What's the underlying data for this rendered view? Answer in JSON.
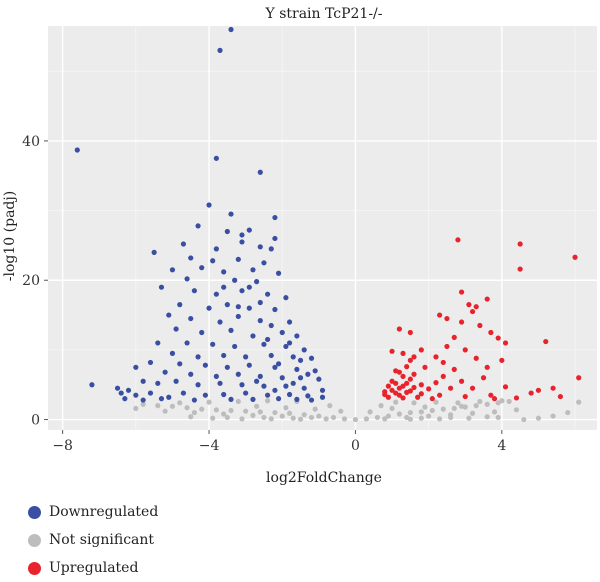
{
  "chart_data": {
    "type": "scatter",
    "title": "Y strain TcP21-/-",
    "xlabel": "log2FoldChange",
    "ylabel": "-log10 (padj)",
    "xlim": [
      -8.4,
      6.6
    ],
    "ylim": [
      -1.5,
      56.5
    ],
    "xticks": [
      -8,
      -4,
      0,
      4
    ],
    "yticks": [
      0,
      20,
      40
    ],
    "grid": true,
    "legend_position": "bottom-left",
    "colors": {
      "down": "#3a4fa3",
      "ns": "#bdbdbd",
      "up": "#e8232c",
      "panel": "#ececec",
      "grid": "#ffffff"
    },
    "series": [
      {
        "name": "Downregulated",
        "color": "#3a4fa3",
        "points": [
          [
            -3.4,
            56
          ],
          [
            -3.7,
            53
          ],
          [
            -7.6,
            38.7
          ],
          [
            -3.8,
            37.5
          ],
          [
            -2.6,
            35.5
          ],
          [
            -4,
            30.8
          ],
          [
            -3.4,
            29.5
          ],
          [
            -2.9,
            27.2
          ],
          [
            -2.2,
            29
          ],
          [
            -4.3,
            27.8
          ],
          [
            -3.5,
            27
          ],
          [
            -3.1,
            25.5
          ],
          [
            -2.6,
            24.8
          ],
          [
            -4.7,
            25.2
          ],
          [
            -5.5,
            24
          ],
          [
            -3.8,
            24.5
          ],
          [
            -2.3,
            24.5
          ],
          [
            -4.5,
            23.2
          ],
          [
            -3.9,
            22.8
          ],
          [
            -3.2,
            23
          ],
          [
            -2.5,
            22.5
          ],
          [
            -5,
            21.5
          ],
          [
            -4.2,
            21.8
          ],
          [
            -3.6,
            21.2
          ],
          [
            -2.8,
            21.5
          ],
          [
            -2.1,
            21
          ],
          [
            -4.6,
            20.2
          ],
          [
            -3.3,
            20
          ],
          [
            -2.7,
            19.8
          ],
          [
            -5.3,
            19
          ],
          [
            -4.4,
            18.5
          ],
          [
            -3.8,
            18
          ],
          [
            -3.1,
            18.5
          ],
          [
            -2.4,
            18
          ],
          [
            -1.9,
            17.5
          ],
          [
            -4.8,
            16.5
          ],
          [
            -4,
            16
          ],
          [
            -3.5,
            16.5
          ],
          [
            -2.9,
            16
          ],
          [
            -2.2,
            15.8
          ],
          [
            -5.1,
            15
          ],
          [
            -4.5,
            14.5
          ],
          [
            -3.7,
            14
          ],
          [
            -3.2,
            14.8
          ],
          [
            -2.6,
            14.2
          ],
          [
            -1.8,
            14
          ],
          [
            -4.9,
            13
          ],
          [
            -4.2,
            12.5
          ],
          [
            -3.4,
            12.8
          ],
          [
            -2.8,
            12
          ],
          [
            -2,
            12.5
          ],
          [
            -1.6,
            12
          ],
          [
            -5.4,
            11
          ],
          [
            -4.6,
            11
          ],
          [
            -3.9,
            10.8
          ],
          [
            -3.3,
            10.5
          ],
          [
            -2.5,
            10.8
          ],
          [
            -1.9,
            10.5
          ],
          [
            -1.4,
            10
          ],
          [
            -5,
            9.5
          ],
          [
            -4.3,
            9
          ],
          [
            -3.6,
            9.2
          ],
          [
            -3,
            9
          ],
          [
            -2.3,
            9.2
          ],
          [
            -1.7,
            9
          ],
          [
            -1.2,
            8.8
          ],
          [
            -5.6,
            8.2
          ],
          [
            -4.8,
            8
          ],
          [
            -4.1,
            7.8
          ],
          [
            -3.5,
            7.5
          ],
          [
            -2.9,
            7.8
          ],
          [
            -2.2,
            7.5
          ],
          [
            -1.6,
            7.2
          ],
          [
            -1.1,
            7
          ],
          [
            -6,
            7.5
          ],
          [
            -5.2,
            6.8
          ],
          [
            -4.5,
            6.5
          ],
          [
            -3.8,
            6.2
          ],
          [
            -3.2,
            6.5
          ],
          [
            -2.6,
            6.2
          ],
          [
            -2,
            6
          ],
          [
            -1.5,
            6
          ],
          [
            -1,
            5.8
          ],
          [
            -6.5,
            4.5
          ],
          [
            -6.2,
            4.2
          ],
          [
            -5.8,
            5.5
          ],
          [
            -5.4,
            5.2
          ],
          [
            -4.9,
            5.5
          ],
          [
            -4.3,
            5
          ],
          [
            -3.7,
            5.2
          ],
          [
            -3.1,
            5
          ],
          [
            -2.5,
            4.8
          ],
          [
            -1.9,
            4.8
          ],
          [
            -1.4,
            4.5
          ],
          [
            -0.9,
            4.2
          ],
          [
            -7.2,
            5
          ],
          [
            -6.4,
            3.8
          ],
          [
            -6,
            3.5
          ],
          [
            -5.6,
            3.8
          ],
          [
            -5.1,
            3.2
          ],
          [
            -4.7,
            3.8
          ],
          [
            -4.1,
            3.5
          ],
          [
            -3.6,
            3.6
          ],
          [
            -3,
            3.8
          ],
          [
            -2.4,
            3.5
          ],
          [
            -1.8,
            3.6
          ],
          [
            -1.3,
            3.4
          ],
          [
            -0.9,
            3.2
          ],
          [
            -6.3,
            3
          ],
          [
            -5.8,
            2.8
          ],
          [
            -5.3,
            3
          ],
          [
            -4.4,
            2.8
          ],
          [
            -3.4,
            2.9
          ],
          [
            -2.8,
            2.9
          ],
          [
            -2.1,
            3
          ],
          [
            -1.6,
            2.9
          ],
          [
            -1.2,
            2.8
          ],
          [
            -2.2,
            4.2
          ],
          [
            -1.7,
            5.2
          ],
          [
            -2.7,
            5.5
          ],
          [
            -1.3,
            6.5
          ],
          [
            -2.1,
            8
          ],
          [
            -1.5,
            8.5
          ],
          [
            -2.4,
            11.5
          ],
          [
            -1.8,
            11
          ],
          [
            -2.3,
            13.5
          ],
          [
            -2.6,
            16.8
          ],
          [
            -3.2,
            16.2
          ],
          [
            -2.9,
            19
          ],
          [
            -3.6,
            19
          ],
          [
            -3.1,
            26.5
          ],
          [
            -2.2,
            26
          ]
        ]
      },
      {
        "name": "Not significant",
        "color": "#bdbdbd",
        "points": [
          [
            -5.8,
            2.2
          ],
          [
            -5.4,
            2
          ],
          [
            -5,
            1.9
          ],
          [
            -4.6,
            1.7
          ],
          [
            -4.2,
            1.5
          ],
          [
            -3.8,
            1.4
          ],
          [
            -3.4,
            1.3
          ],
          [
            -3,
            1.2
          ],
          [
            -2.6,
            1.1
          ],
          [
            -2.2,
            1
          ],
          [
            -1.8,
            0.9
          ],
          [
            -1.4,
            0.7
          ],
          [
            -1,
            0.5
          ],
          [
            -0.6,
            0.3
          ],
          [
            -0.3,
            0.1
          ],
          [
            0,
            0
          ],
          [
            0.3,
            0.1
          ],
          [
            0.6,
            0.3
          ],
          [
            0.9,
            0.5
          ],
          [
            1.2,
            0.8
          ],
          [
            1.5,
            1
          ],
          [
            1.8,
            1.1
          ],
          [
            2.1,
            1.3
          ],
          [
            2.4,
            1.5
          ],
          [
            2.7,
            1.6
          ],
          [
            3,
            1.8
          ],
          [
            3.3,
            2
          ],
          [
            3.6,
            2.2
          ],
          [
            3.9,
            2.4
          ],
          [
            4.2,
            2.6
          ],
          [
            -6,
            1.6
          ],
          [
            -5.2,
            1.2
          ],
          [
            -4.4,
            1
          ],
          [
            -3.6,
            0.8
          ],
          [
            -2.8,
            0.6
          ],
          [
            -2,
            0.5
          ],
          [
            -1.2,
            0.3
          ],
          [
            -0.8,
            0.1
          ],
          [
            0.8,
            0.1
          ],
          [
            1.4,
            0.3
          ],
          [
            2,
            0.5
          ],
          [
            2.6,
            0.7
          ],
          [
            3.2,
            0.9
          ],
          [
            3.8,
            1.1
          ],
          [
            4.4,
            1.4
          ],
          [
            -4.8,
            2.4
          ],
          [
            -4,
            2.5
          ],
          [
            -3.2,
            2.6
          ],
          [
            -2.4,
            2.7
          ],
          [
            -1.6,
            2.6
          ],
          [
            -0.7,
            2
          ],
          [
            -0.4,
            1.2
          ],
          [
            0.4,
            1.1
          ],
          [
            0.7,
            2
          ],
          [
            1.1,
            2.5
          ],
          [
            1.6,
            2.4
          ],
          [
            2.2,
            2.5
          ],
          [
            2.8,
            2.4
          ],
          [
            3.4,
            2.6
          ],
          [
            4,
            2.7
          ],
          [
            -3.9,
            0.2
          ],
          [
            -3.1,
            0.1
          ],
          [
            -2.3,
            0.1
          ],
          [
            -1.5,
            0.05
          ],
          [
            1.5,
            0.05
          ],
          [
            2.3,
            0.1
          ],
          [
            3.1,
            0.2
          ],
          [
            3.9,
            0.3
          ],
          [
            4.6,
            0
          ],
          [
            5,
            0.2
          ],
          [
            5.4,
            0.5
          ],
          [
            5.8,
            1
          ],
          [
            6.1,
            2.5
          ],
          [
            -2.7,
            1.9
          ],
          [
            -1.9,
            1.7
          ],
          [
            -1.1,
            1.5
          ],
          [
            1,
            1.6
          ],
          [
            1.9,
            1.8
          ],
          [
            2.9,
            1.9
          ],
          [
            -4.5,
            0.4
          ],
          [
            -3.5,
            0.3
          ],
          [
            -2.5,
            0.3
          ],
          [
            -1.7,
            0.2
          ],
          [
            1.8,
            0.2
          ],
          [
            2.6,
            0.3
          ],
          [
            3.6,
            0.4
          ]
        ]
      },
      {
        "name": "Upregulated",
        "color": "#e8232c",
        "points": [
          [
            2.8,
            25.8
          ],
          [
            4.5,
            25.2
          ],
          [
            6,
            23.3
          ],
          [
            4.5,
            21.6
          ],
          [
            2.9,
            18.3
          ],
          [
            3.6,
            17.3
          ],
          [
            3.1,
            16.5
          ],
          [
            3.2,
            15.5
          ],
          [
            2.3,
            15
          ],
          [
            2.9,
            14
          ],
          [
            3.4,
            13.5
          ],
          [
            3.7,
            12.5
          ],
          [
            3.9,
            11.7
          ],
          [
            4.1,
            11
          ],
          [
            5.2,
            11.2
          ],
          [
            1.5,
            12.5
          ],
          [
            1.2,
            13
          ],
          [
            2.5,
            10.5
          ],
          [
            3,
            10
          ],
          [
            1.8,
            10
          ],
          [
            2.2,
            9
          ],
          [
            3.3,
            8.8
          ],
          [
            1.5,
            8.5
          ],
          [
            1.9,
            7.5
          ],
          [
            2.7,
            7.2
          ],
          [
            3.6,
            7.5
          ],
          [
            1.1,
            7
          ],
          [
            1.6,
            6.5
          ],
          [
            2.4,
            6.2
          ],
          [
            3.5,
            6
          ],
          [
            6.1,
            6
          ],
          [
            1.3,
            6.2
          ],
          [
            1,
            5.5
          ],
          [
            1.4,
            5.2
          ],
          [
            1.8,
            5
          ],
          [
            2.2,
            5.3
          ],
          [
            2.9,
            5.5
          ],
          [
            0.9,
            4.8
          ],
          [
            1.2,
            4.5
          ],
          [
            1.6,
            4.6
          ],
          [
            2,
            4.4
          ],
          [
            2.6,
            4.5
          ],
          [
            3.2,
            4.5
          ],
          [
            4.1,
            4.7
          ],
          [
            5.4,
            4.5
          ],
          [
            0.8,
            4
          ],
          [
            1.1,
            3.8
          ],
          [
            1.4,
            3.9
          ],
          [
            1.8,
            3.7
          ],
          [
            2.3,
            3.5
          ],
          [
            3,
            3.3
          ],
          [
            3.7,
            3.5
          ],
          [
            4.8,
            3.8
          ],
          [
            5.6,
            3.3
          ],
          [
            4.4,
            3.1
          ],
          [
            3.8,
            3
          ],
          [
            0.9,
            3.2
          ],
          [
            1.3,
            3.1
          ],
          [
            1.7,
            3.2
          ],
          [
            2.1,
            3
          ],
          [
            0.8,
            3.6
          ],
          [
            1.0,
            4.2
          ],
          [
            1.2,
            3.5
          ],
          [
            1.5,
            4.1
          ],
          [
            1.3,
            4.8
          ],
          [
            1.1,
            5.2
          ],
          [
            1.5,
            5.8
          ],
          [
            1.2,
            6.8
          ],
          [
            1.4,
            7.6
          ],
          [
            1.3,
            9.5
          ],
          [
            1.6,
            9
          ],
          [
            1,
            9.8
          ],
          [
            2.5,
            14.5
          ],
          [
            2.7,
            11.8
          ],
          [
            3.3,
            16.2
          ],
          [
            5,
            4.2
          ],
          [
            4,
            8.5
          ],
          [
            2.4,
            8.2
          ]
        ]
      }
    ],
    "legend": [
      {
        "label": "Downregulated",
        "color": "#3a4fa3"
      },
      {
        "label": "Not significant",
        "color": "#bdbdbd"
      },
      {
        "label": "Upregulated",
        "color": "#e8232c"
      }
    ]
  }
}
